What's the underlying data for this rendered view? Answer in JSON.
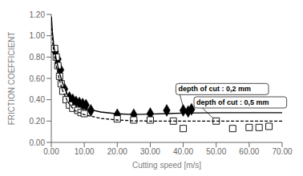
{
  "chart_data": {
    "type": "scatter",
    "title": "",
    "xlabel": "Cutting speed [m/s]",
    "ylabel": "FRICTION COEFFICIENT",
    "xlim": [
      0,
      70
    ],
    "ylim": [
      0.0,
      1.2
    ],
    "xticks": [
      {
        "value": 0,
        "label": "0.00"
      },
      {
        "value": 10,
        "label": "10.00"
      },
      {
        "value": 20,
        "label": "20.00"
      },
      {
        "value": 30,
        "label": "30.00"
      },
      {
        "value": 40,
        "label": "40.00"
      },
      {
        "value": 50,
        "label": "50.00"
      },
      {
        "value": 60,
        "label": "60.00"
      },
      {
        "value": 70,
        "label": "70.00"
      }
    ],
    "yticks": [
      {
        "value": 0.0,
        "label": "0.00"
      },
      {
        "value": 0.2,
        "label": "0.20"
      },
      {
        "value": 0.4,
        "label": "0.40"
      },
      {
        "value": 0.6,
        "label": "0.60"
      },
      {
        "value": 0.8,
        "label": "0.80"
      },
      {
        "value": 1.0,
        "label": "1.00"
      },
      {
        "value": 1.2,
        "label": "1.20"
      }
    ],
    "grid": false,
    "series": [
      {
        "type": "scatter",
        "marker": "diamond",
        "color": "#000000",
        "x": [
          1.2,
          2.0,
          2.8,
          4.0,
          5.5,
          6.5,
          7.5,
          8.5,
          9.5,
          10.5,
          12.0,
          20.0,
          25.0,
          30.0,
          35.0,
          40.0,
          41.5,
          42.5
        ],
        "values": [
          0.85,
          0.78,
          0.68,
          0.5,
          0.42,
          0.4,
          0.38,
          0.37,
          0.36,
          0.35,
          0.3,
          0.26,
          0.26,
          0.27,
          0.3,
          0.3,
          0.29,
          0.31
        ]
      },
      {
        "type": "scatter",
        "marker": "open_square",
        "color": "#000000",
        "x": [
          1.0,
          1.5,
          2.0,
          2.5,
          3.0,
          3.5,
          4.5,
          5.5,
          6.5,
          8.0,
          9.0,
          10.0,
          20.0,
          25.0,
          30.0,
          37.0,
          40.0,
          50.0,
          55.0,
          60.0,
          63.0,
          66.0
        ],
        "values": [
          0.88,
          0.8,
          0.72,
          0.62,
          0.55,
          0.48,
          0.4,
          0.35,
          0.32,
          0.3,
          0.28,
          0.27,
          0.22,
          0.21,
          0.21,
          0.2,
          0.13,
          0.2,
          0.13,
          0.14,
          0.14,
          0.15
        ]
      },
      {
        "type": "line",
        "line_style": "solid",
        "color": "#000000",
        "x": [
          0.05,
          0.3,
          0.8,
          1.5,
          2.5,
          3.5,
          5.0,
          7.0,
          10.0,
          15.0,
          20.0,
          25.0,
          30.0,
          35.0,
          40.0,
          50.0,
          60.0,
          70.0
        ],
        "values": [
          1.18,
          1.05,
          0.9,
          0.78,
          0.65,
          0.55,
          0.44,
          0.37,
          0.32,
          0.285,
          0.268,
          0.262,
          0.265,
          0.27,
          0.275,
          0.278,
          0.278,
          0.278
        ]
      },
      {
        "type": "line",
        "line_style": "dashed",
        "color": "#000000",
        "x": [
          0.05,
          0.3,
          0.8,
          1.5,
          2.5,
          3.5,
          5.0,
          7.0,
          10.0,
          15.0,
          20.0,
          25.0,
          30.0,
          40.0,
          50.0,
          60.0,
          70.0
        ],
        "values": [
          1.12,
          0.98,
          0.84,
          0.72,
          0.58,
          0.48,
          0.38,
          0.3,
          0.26,
          0.225,
          0.21,
          0.202,
          0.2,
          0.2,
          0.2,
          0.2,
          0.2
        ]
      }
    ],
    "annotations": [
      {
        "text": "depth of cut : 0,2 mm",
        "x": 40.5,
        "y": 0.278,
        "text_x": 38.5,
        "text_y": 0.5
      },
      {
        "text": "depth of cut : 0,5 mm",
        "x": 50.0,
        "y": 0.2,
        "text_x": 44.0,
        "text_y": 0.375
      }
    ]
  }
}
